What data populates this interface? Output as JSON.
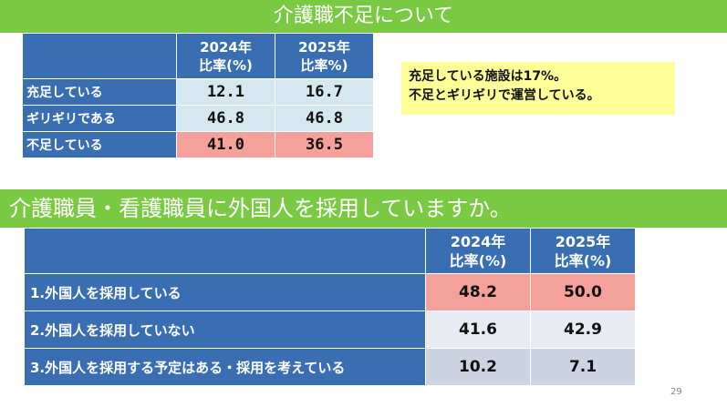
{
  "section1": {
    "title": "介護職不足について",
    "table": {
      "headers": [
        "2024年\n比率(%)",
        "2025年\n比率%)"
      ],
      "rows": [
        {
          "label": "充足している",
          "v2024": "12.1",
          "v2025": "16.7"
        },
        {
          "label": "ギリギリである",
          "v2024": "46.8",
          "v2025": "46.8"
        },
        {
          "label": "不足している",
          "v2024": "41.0",
          "v2025": "36.5"
        }
      ]
    },
    "note_line1": "充足している施設は17%。",
    "note_line2": "不足とギリギリで運営している。"
  },
  "section2": {
    "title": "介護職員・看護職員に外国人を採用していますか。",
    "table": {
      "headers": [
        "2024年\n比率(%)",
        "2025年\n比率(%)"
      ],
      "rows": [
        {
          "label": "1.外国人を採用している",
          "v2024": "48.2",
          "v2025": "50.0"
        },
        {
          "label": "2.外国人を採用していない",
          "v2024": "41.6",
          "v2025": "42.9"
        },
        {
          "label": "3.外国人を採用する予定はある・採用を考えている",
          "v2024": "10.2",
          "v2025": "7.1"
        }
      ]
    }
  },
  "page_number": "29",
  "colors": {
    "banner_green": "#7ac943",
    "header_blue": "#3a6eb2",
    "cell_light_blue": "#d5e8f0",
    "cell_pink": "#f4a09b",
    "cell_grey_light": "#e8ebf2",
    "cell_grey_mid": "#ccd3e3",
    "note_yellow": "#ffff99"
  }
}
